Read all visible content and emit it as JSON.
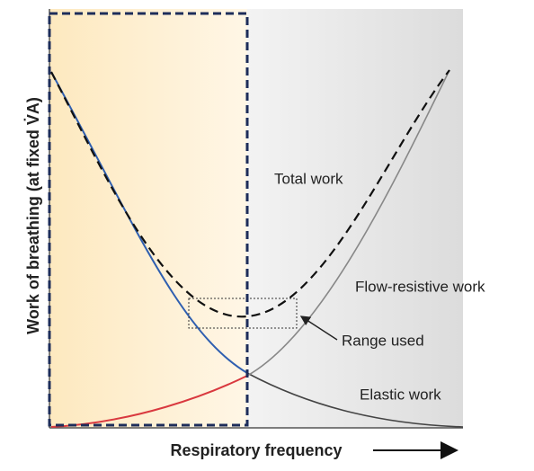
{
  "y_axis_label": "Work of breathing (at fixed V̇A)",
  "x_axis_label": "Respiratory frequency",
  "labels": {
    "total": "Total work",
    "flow_resistive": "Flow-resistive work",
    "range": "Range used",
    "elastic": "Elastic work"
  }
}
